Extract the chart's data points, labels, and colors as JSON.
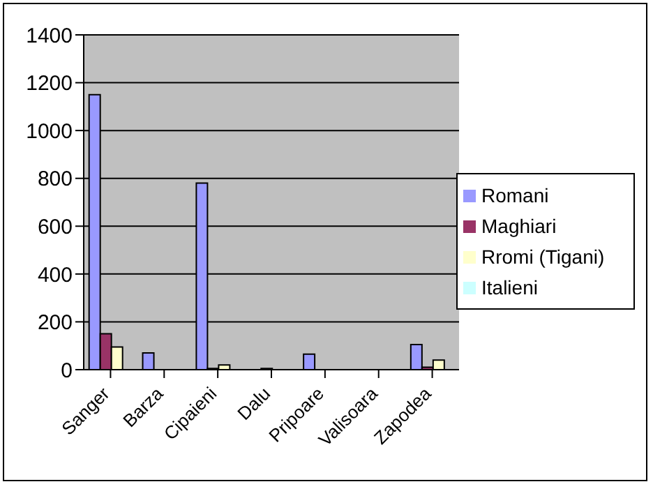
{
  "chart_data": {
    "type": "bar",
    "categories": [
      "Sanger",
      "Barza",
      "Cipaieni",
      "Dalu",
      "Pripoare",
      "Valisoara",
      "Zapodea"
    ],
    "series": [
      {
        "name": "Romani",
        "color": "#9999ff",
        "values": [
          1150,
          70,
          780,
          0,
          65,
          0,
          105
        ]
      },
      {
        "name": "Maghiari",
        "color": "#993366",
        "values": [
          150,
          0,
          5,
          5,
          0,
          0,
          10
        ]
      },
      {
        "name": "Rromi (Tigani)",
        "color": "#ffffcc",
        "values": [
          95,
          0,
          20,
          0,
          0,
          0,
          40
        ]
      },
      {
        "name": "Italieni",
        "color": "#ccffff",
        "values": [
          0,
          0,
          0,
          0,
          0,
          0,
          0
        ]
      }
    ],
    "ylim": [
      0,
      1400
    ],
    "yticks": [
      0,
      200,
      400,
      600,
      800,
      1000,
      1200,
      1400
    ],
    "grid": "y",
    "legend": "right"
  }
}
